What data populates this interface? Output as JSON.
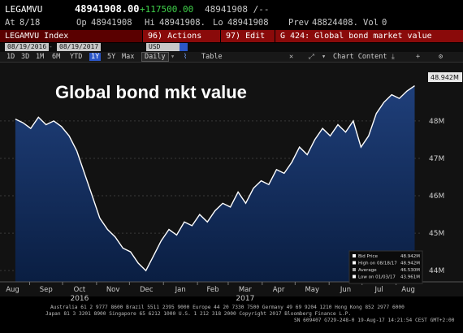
{
  "header": {
    "ticker": "LEGAMVU",
    "last": "48941908.00",
    "change": "+117500.00",
    "bid_ask": "48941908 /--",
    "at_label": "At",
    "at_value": "8/18",
    "open_label": "Op",
    "open_value": "48941908",
    "high_label": "Hi",
    "high_value": "48941908.",
    "low_label": "Lo",
    "low_value": "48941908",
    "prev_label": "Prev",
    "prev_value": "48824408.",
    "vol_label": "Vol",
    "vol_value": "0"
  },
  "menu": {
    "index_label": "LEGAMVU Index",
    "actions_label": "96) Actions",
    "edit_label": "97) Edit",
    "page_title": "G 424: Global bond market value"
  },
  "toolbar": {
    "start_date": "08/19/2016",
    "end_date": "08/19/2017",
    "currency": "USD",
    "timeframes": [
      "1D",
      "3D",
      "1M",
      "6M",
      "YTD",
      "1Y",
      "5Y",
      "Max"
    ],
    "active_timeframe": "1Y",
    "period": "Daily",
    "table_label": "Table",
    "chart_content_label": "Chart Content"
  },
  "colors": {
    "accent_blue": "#2b56c6",
    "menu_red": "#8a0a0a",
    "up_green": "#3fd14a",
    "line_white": "#ffffff"
  },
  "chart_data": {
    "type": "area",
    "title": "Global bond mkt value",
    "y_unit": "M",
    "y_ticks": [
      "44M",
      "45M",
      "46M",
      "47M",
      "48M"
    ],
    "ylim": [
      43.7,
      49.3
    ],
    "x_ticks": [
      "Aug",
      "Sep",
      "Oct",
      "Nov",
      "Dec",
      "Jan",
      "Feb",
      "Mar",
      "Apr",
      "May",
      "Jun",
      "Jul",
      "Aug"
    ],
    "year_labels": [
      "2016",
      "2017"
    ],
    "last_value_label": "48.942M",
    "series": [
      {
        "name": "Bid Price",
        "x": [
          "2016-08-19",
          "2016-08-26",
          "2016-09-02",
          "2016-09-09",
          "2016-09-16",
          "2016-09-23",
          "2016-09-30",
          "2016-10-07",
          "2016-10-14",
          "2016-10-21",
          "2016-10-28",
          "2016-11-04",
          "2016-11-11",
          "2016-11-18",
          "2016-11-25",
          "2016-12-02",
          "2016-12-09",
          "2016-12-16",
          "2016-12-23",
          "2016-12-30",
          "2017-01-06",
          "2017-01-13",
          "2017-01-20",
          "2017-01-27",
          "2017-02-03",
          "2017-02-10",
          "2017-02-17",
          "2017-02-24",
          "2017-03-03",
          "2017-03-10",
          "2017-03-17",
          "2017-03-24",
          "2017-03-31",
          "2017-04-07",
          "2017-04-14",
          "2017-04-21",
          "2017-04-28",
          "2017-05-05",
          "2017-05-12",
          "2017-05-19",
          "2017-05-26",
          "2017-06-02",
          "2017-06-09",
          "2017-06-16",
          "2017-06-23",
          "2017-06-30",
          "2017-07-07",
          "2017-07-14",
          "2017-07-21",
          "2017-07-28",
          "2017-08-04",
          "2017-08-11",
          "2017-08-18"
        ],
        "values": [
          48.05,
          47.95,
          47.8,
          48.1,
          47.9,
          48.0,
          47.85,
          47.6,
          47.2,
          46.6,
          46.0,
          45.4,
          45.1,
          44.9,
          44.6,
          44.5,
          44.2,
          44.0,
          44.4,
          44.8,
          45.1,
          44.95,
          45.3,
          45.2,
          45.5,
          45.3,
          45.6,
          45.8,
          45.7,
          46.1,
          45.8,
          46.2,
          46.4,
          46.3,
          46.7,
          46.6,
          46.9,
          47.3,
          47.1,
          47.5,
          47.8,
          47.6,
          47.9,
          47.7,
          48.0,
          47.3,
          47.6,
          48.2,
          48.5,
          48.7,
          48.6,
          48.8,
          48.94
        ]
      }
    ],
    "legend": [
      {
        "label": "Bid Price",
        "value": "48.942M"
      },
      {
        "label": "High on 08/18/17",
        "value": "48.942M"
      },
      {
        "label": "Average",
        "value": "46.530M"
      },
      {
        "label": "Low on 01/03/17",
        "value": "43.961M"
      }
    ]
  },
  "footer": {
    "line1": "Australia 61 2 9777 8600 Brazil 5511 2395 9000 Europe 44 20 7330 7500 Germany 49 69 9204 1210 Hong Kong 852 2977 6000",
    "line2": "Japan 81 3 3201 8900          Singapore 65 6212 1000          U.S. 1 212 318 2000          Copyright 2017 Bloomberg Finance L.P.",
    "line3": "SN 609407 G729-248-0 19-Aug-17 14:21:54 CEST GMT+2:00"
  }
}
